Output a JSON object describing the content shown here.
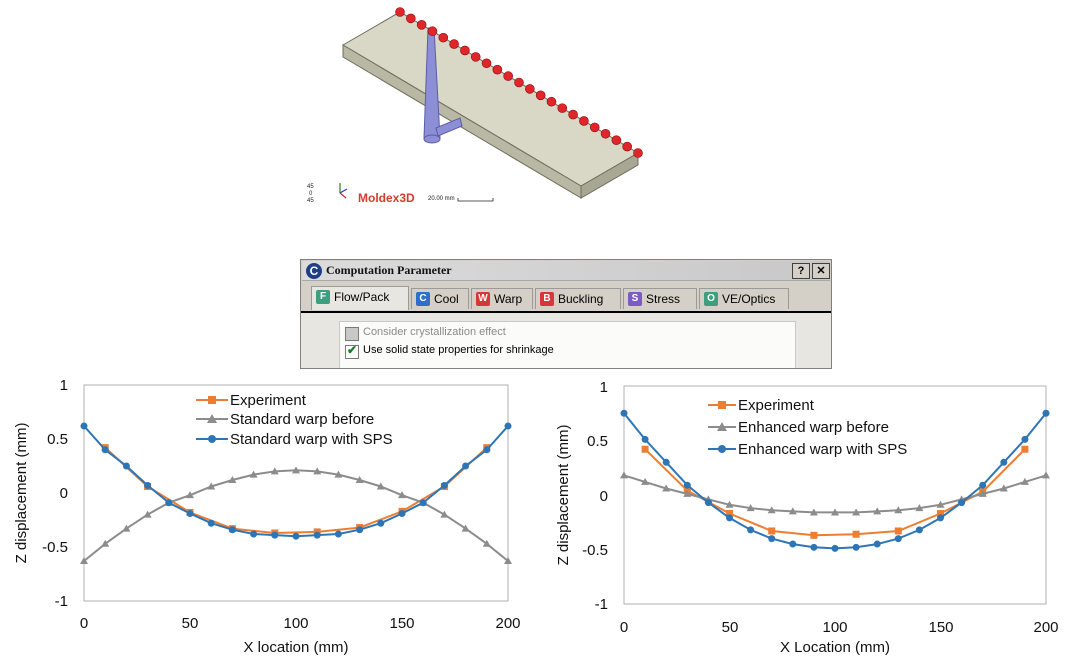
{
  "model_view": {
    "brand": "Moldex3D",
    "scale_label": "20.00 mm",
    "orientation_labels": [
      "45",
      "0",
      "45"
    ],
    "colors": {
      "plate": "#d9d8c6",
      "gates": "#e0262b",
      "runner": "#8d8fd6",
      "brand": "#d63b2b"
    }
  },
  "dialog": {
    "app_icon": "C",
    "title": "Computation Parameter",
    "help_button": "?",
    "close_button": "✕",
    "tabs": [
      {
        "key": "F",
        "label": "Flow/Pack",
        "color": "#3e9e7e",
        "active": true
      },
      {
        "key": "C",
        "label": "Cool",
        "color": "#2f6fc6",
        "active": false
      },
      {
        "key": "W",
        "label": "Warp",
        "color": "#d8373a",
        "active": false
      },
      {
        "key": "B",
        "label": "Buckling",
        "color": "#d8373a",
        "active": false
      },
      {
        "key": "S",
        "label": "Stress",
        "color": "#7c5cc4",
        "active": false
      },
      {
        "key": "O",
        "label": "VE/Optics",
        "color": "#3e9e7e",
        "active": false
      }
    ],
    "options": [
      {
        "label": "Consider crystallization effect",
        "checked": false,
        "enabled": false
      },
      {
        "label": "Use solid state properties for shrinkage",
        "checked": true,
        "enabled": true
      }
    ]
  },
  "chart_data": [
    {
      "type": "line",
      "xlabel": "X location (mm)",
      "ylabel": "Z displacement (mm)",
      "xlim": [
        0,
        200
      ],
      "ylim": [
        -1,
        1
      ],
      "xticks": [
        "0",
        "50",
        "100",
        "150",
        "200"
      ],
      "yticks": [
        "1",
        "0.5",
        "0",
        "-0.5",
        "-1"
      ],
      "legend_position": "top-center",
      "series": [
        {
          "name": "Experiment",
          "color": "#ed7d31",
          "marker": "square",
          "x": [
            10,
            30,
            50,
            70,
            90,
            110,
            130,
            150,
            170,
            190
          ],
          "y": [
            0.42,
            0.06,
            -0.18,
            -0.33,
            -0.37,
            -0.36,
            -0.32,
            -0.17,
            0.06,
            0.42
          ]
        },
        {
          "name": "Standard warp before",
          "color": "#8c8c8c",
          "marker": "triangle",
          "x": [
            0,
            10,
            20,
            30,
            40,
            50,
            60,
            70,
            80,
            90,
            100,
            110,
            120,
            130,
            140,
            150,
            160,
            170,
            180,
            190,
            200
          ],
          "y": [
            -0.63,
            -0.47,
            -0.33,
            -0.2,
            -0.09,
            -0.02,
            0.06,
            0.12,
            0.17,
            0.2,
            0.21,
            0.2,
            0.17,
            0.12,
            0.06,
            -0.02,
            -0.09,
            -0.2,
            -0.33,
            -0.47,
            -0.63
          ]
        },
        {
          "name": "Standard warp with SPS",
          "color": "#2e75b6",
          "marker": "circle",
          "x": [
            0,
            10,
            20,
            30,
            40,
            50,
            60,
            70,
            80,
            90,
            100,
            110,
            120,
            130,
            140,
            150,
            160,
            170,
            180,
            190,
            200
          ],
          "y": [
            0.62,
            0.4,
            0.25,
            0.07,
            -0.09,
            -0.19,
            -0.28,
            -0.34,
            -0.38,
            -0.39,
            -0.4,
            -0.39,
            -0.38,
            -0.34,
            -0.28,
            -0.19,
            -0.09,
            0.07,
            0.25,
            0.4,
            0.62
          ]
        }
      ]
    },
    {
      "type": "line",
      "xlabel": "X Location (mm)",
      "ylabel": "Z displacement (mm)",
      "xlim": [
        0,
        200
      ],
      "ylim": [
        -1,
        1
      ],
      "xticks": [
        "0",
        "50",
        "100",
        "150",
        "200"
      ],
      "yticks": [
        "1",
        "0.5",
        "0",
        "-0.5",
        "-1"
      ],
      "legend_position": "top-center",
      "series": [
        {
          "name": "Experiment",
          "color": "#ed7d31",
          "marker": "square",
          "x": [
            10,
            30,
            50,
            70,
            90,
            110,
            130,
            150,
            170,
            190
          ],
          "y": [
            0.42,
            0.04,
            -0.17,
            -0.33,
            -0.37,
            -0.36,
            -0.33,
            -0.17,
            0.03,
            0.42
          ]
        },
        {
          "name": "Enhanced warp before",
          "color": "#8c8c8c",
          "marker": "triangle",
          "x": [
            0,
            10,
            20,
            30,
            40,
            50,
            60,
            70,
            80,
            90,
            100,
            110,
            120,
            130,
            140,
            150,
            160,
            170,
            180,
            190,
            200
          ],
          "y": [
            0.18,
            0.12,
            0.06,
            0.01,
            -0.04,
            -0.09,
            -0.12,
            -0.14,
            -0.15,
            -0.16,
            -0.16,
            -0.16,
            -0.15,
            -0.14,
            -0.12,
            -0.09,
            -0.04,
            0.01,
            0.06,
            0.12,
            0.18
          ]
        },
        {
          "name": "Enhanced warp with SPS",
          "color": "#2e75b6",
          "marker": "circle",
          "x": [
            0,
            10,
            20,
            30,
            40,
            50,
            60,
            70,
            80,
            90,
            100,
            110,
            120,
            130,
            140,
            150,
            160,
            170,
            180,
            190,
            200
          ],
          "y": [
            0.75,
            0.51,
            0.3,
            0.09,
            -0.07,
            -0.21,
            -0.32,
            -0.4,
            -0.45,
            -0.48,
            -0.49,
            -0.48,
            -0.45,
            -0.4,
            -0.32,
            -0.21,
            -0.07,
            0.09,
            0.3,
            0.51,
            0.75
          ]
        }
      ]
    }
  ]
}
